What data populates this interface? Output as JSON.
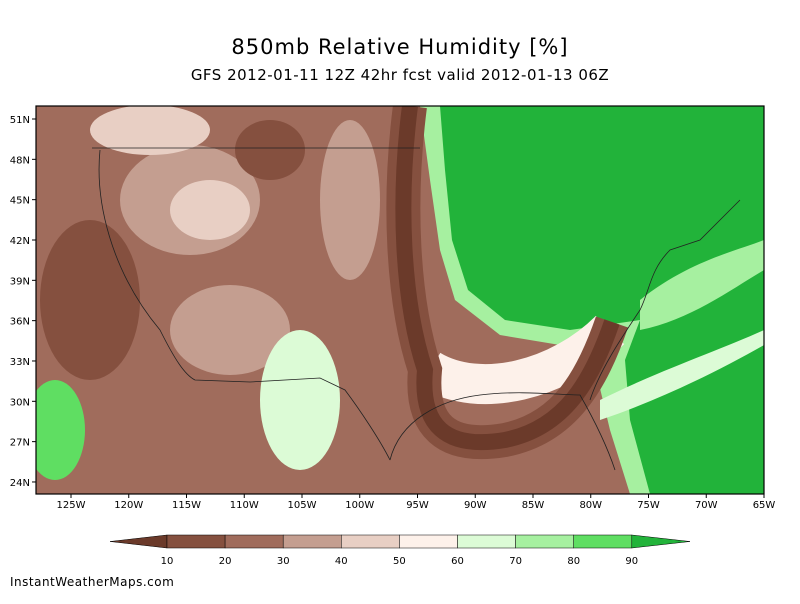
{
  "title": "850mb Relative Humidity [%]",
  "subtitle": "GFS 2012-01-11 12Z 42hr fcst valid 2012-01-13 06Z",
  "lat_labels": [
    "51N",
    "48N",
    "45N",
    "42N",
    "39N",
    "36N",
    "33N",
    "30N",
    "27N",
    "24N"
  ],
  "lon_labels": [
    "125W",
    "120W",
    "115W",
    "110W",
    "105W",
    "100W",
    "95W",
    "90W",
    "85W",
    "80W",
    "75W",
    "70W",
    "65W"
  ],
  "colorbar": {
    "ticks": [
      10,
      20,
      30,
      40,
      50,
      60,
      70,
      80,
      90
    ],
    "colors": [
      "#6b3a2a",
      "#85503f",
      "#a06c5c",
      "#c49e90",
      "#e8cfc4",
      "#fdf1ea",
      "#dcfbd6",
      "#a6f0a0",
      "#5fde62",
      "#22b33a"
    ]
  },
  "credit": "InstantWeatherMaps.com"
}
